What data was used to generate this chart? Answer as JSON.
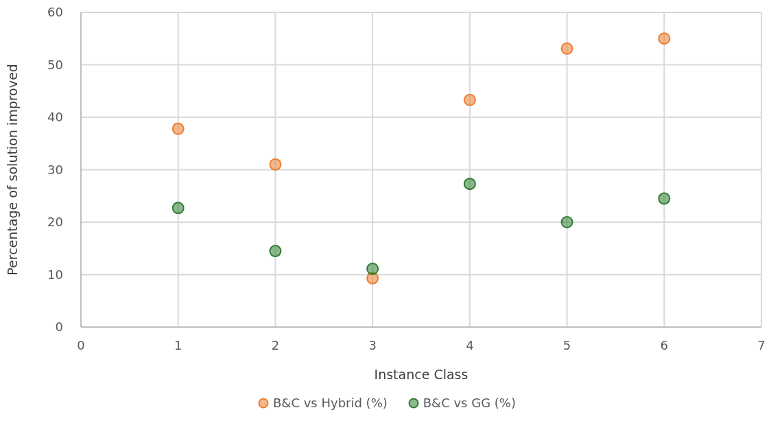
{
  "chart_data": {
    "type": "scatter",
    "xlabel": "Instance Class",
    "ylabel": "Percentage of solution improved",
    "x": [
      1,
      2,
      3,
      4,
      5,
      6
    ],
    "series": [
      {
        "name": "B&C vs Hybrid (%)",
        "color": "#ed7d31",
        "values": [
          37.8,
          31.0,
          9.3,
          43.3,
          53.1,
          55.0
        ]
      },
      {
        "name": "B&C vs GG (%)",
        "color": "#2e7d32",
        "values": [
          22.7,
          14.5,
          11.1,
          27.3,
          20.0,
          24.5
        ]
      }
    ],
    "xlim": [
      0,
      7
    ],
    "xticks": [
      0,
      1,
      2,
      3,
      4,
      5,
      6,
      7
    ],
    "ylim": [
      0,
      60
    ],
    "yticks": [
      0,
      10,
      20,
      30,
      40,
      50,
      60
    ],
    "grid": true,
    "legend": "bottom",
    "marker": "circle"
  }
}
